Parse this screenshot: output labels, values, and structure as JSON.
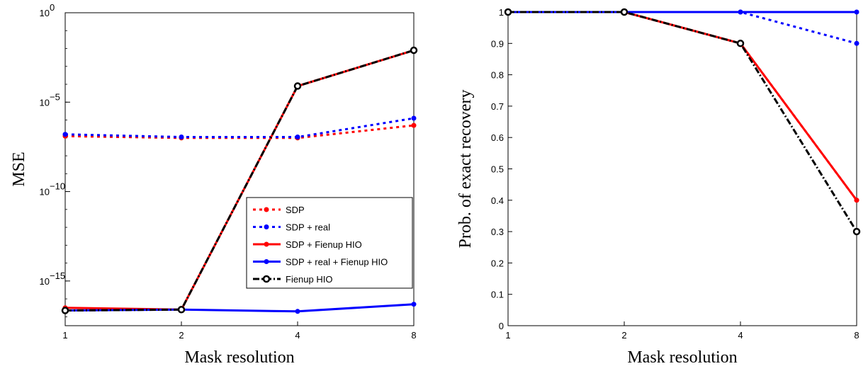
{
  "chart_data": [
    {
      "type": "line",
      "yscale": "log",
      "xticks": [
        "1",
        "2",
        "4",
        "8"
      ],
      "xlabel": "Mask resolution",
      "ylabel": "MSE",
      "yticks": [
        {
          "mantissa": "10",
          "exp": "0",
          "value": 1
        },
        {
          "mantissa": "10",
          "exp": "−5",
          "value": 1e-05
        },
        {
          "mantissa": "10",
          "exp": "−10",
          "value": 1e-10
        },
        {
          "mantissa": "10",
          "exp": "−15",
          "value": 1e-15
        }
      ],
      "ylim_log10": [
        -17.5,
        0
      ],
      "legend_position": "lower-right",
      "series": [
        {
          "name": "SDP",
          "color": "#ff0000",
          "style": "dotted",
          "marker": "dot",
          "values_log10": [
            -6.9,
            -7.0,
            -7.0,
            -6.3
          ]
        },
        {
          "name": "SDP + real",
          "color": "#0000ff",
          "style": "dotted",
          "marker": "dot",
          "values_log10": [
            -6.8,
            -6.95,
            -6.95,
            -5.9
          ]
        },
        {
          "name": "SDP + Fienup HIO",
          "color": "#ff0000",
          "style": "solid",
          "marker": "dot",
          "values_log10": [
            -16.5,
            -16.6,
            -4.1,
            -2.1
          ]
        },
        {
          "name": "SDP + real + Fienup HIO",
          "color": "#0000ff",
          "style": "solid",
          "marker": "dot",
          "values_log10": [
            -16.65,
            -16.6,
            -16.7,
            -16.3
          ]
        },
        {
          "name": "Fienup HIO",
          "color": "#000000",
          "style": "dashdot",
          "marker": "circle",
          "values_log10": [
            -16.65,
            -16.6,
            -4.1,
            -2.1
          ]
        }
      ]
    },
    {
      "type": "line",
      "xticks": [
        "1",
        "2",
        "4",
        "8"
      ],
      "xlabel": "Mask resolution",
      "ylabel": "Prob. of exact recovery",
      "yticks": [
        "0",
        "0.1",
        "0.2",
        "0.3",
        "0.4",
        "0.5",
        "0.6",
        "0.7",
        "0.8",
        "0.9",
        "1"
      ],
      "ylim": [
        0,
        1
      ],
      "series": [
        {
          "color": "#ff0000",
          "style": "dotted",
          "marker": "dot",
          "values": [
            1,
            1,
            0.9,
            0.4
          ]
        },
        {
          "color": "#0000ff",
          "style": "dotted",
          "marker": "dot",
          "values": [
            1,
            1,
            1,
            0.9
          ]
        },
        {
          "color": "#ff0000",
          "style": "solid",
          "marker": "dot",
          "values": [
            1,
            1,
            0.9,
            0.4
          ]
        },
        {
          "color": "#0000ff",
          "style": "solid",
          "marker": "dot",
          "values": [
            1,
            1,
            1,
            1
          ]
        },
        {
          "color": "#000000",
          "style": "dashdot",
          "marker": "circle",
          "values": [
            1,
            1,
            0.9,
            0.3
          ]
        }
      ]
    }
  ]
}
